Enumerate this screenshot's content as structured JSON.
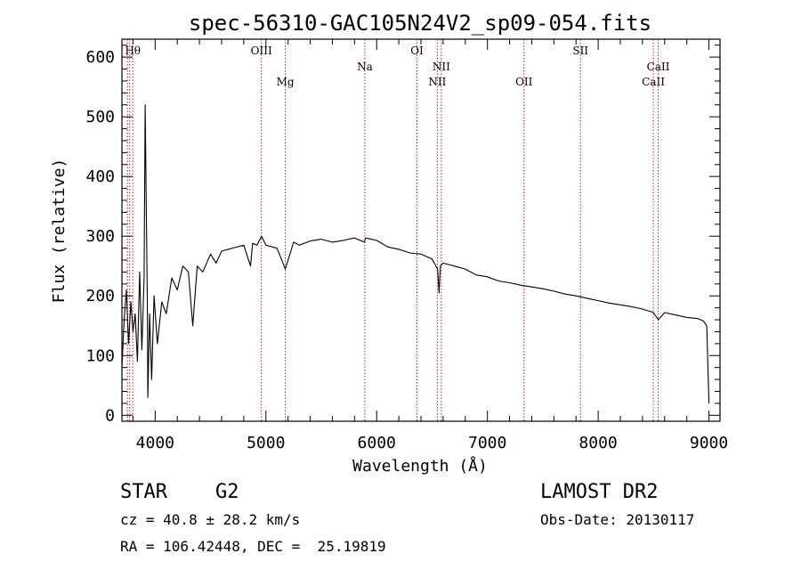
{
  "chart_data": {
    "type": "line",
    "title": "spec-56310-GAC105N24V2_sp09-054.fits",
    "xlabel": "Wavelength (Å)",
    "ylabel": "Flux (relative)",
    "xlim": [
      3700,
      9100
    ],
    "ylim": [
      -10,
      630
    ],
    "xticks": [
      4000,
      5000,
      6000,
      7000,
      8000,
      9000
    ],
    "yticks": [
      0,
      100,
      200,
      300,
      400,
      500,
      600
    ],
    "grid": false,
    "line_color": "#000000",
    "marker_color": "#b22222",
    "lines": [
      {
        "name": "Hθ",
        "wavelength": 3798,
        "row": "upper"
      },
      {
        "name": "OIII",
        "wavelength": 4959,
        "row": "upper"
      },
      {
        "name": "Mg",
        "wavelength": 5175,
        "row": "lower"
      },
      {
        "name": "Na",
        "wavelength": 5893,
        "row": "middle"
      },
      {
        "name": "OI",
        "wavelength": 6364,
        "row": "upper"
      },
      {
        "name": "NII",
        "wavelength": 6548,
        "row": "lower"
      },
      {
        "name": "NII",
        "wavelength": 6584,
        "row": "middle"
      },
      {
        "name": "OII",
        "wavelength": 7330,
        "row": "lower"
      },
      {
        "name": "SII",
        "wavelength": 7840,
        "row": "upper"
      },
      {
        "name": "CaII",
        "wavelength": 8498,
        "row": "lower"
      },
      {
        "name": "CaII",
        "wavelength": 8542,
        "row": "middle"
      },
      {
        "name": "",
        "wavelength": 3750,
        "row": "none"
      },
      {
        "name": "",
        "wavelength": 3770,
        "row": "none"
      }
    ],
    "spectrum": {
      "x": [
        3700,
        3720,
        3740,
        3760,
        3780,
        3800,
        3820,
        3840,
        3860,
        3880,
        3900,
        3910,
        3930,
        3934,
        3950,
        3968,
        3990,
        4020,
        4060,
        4100,
        4150,
        4200,
        4250,
        4300,
        4340,
        4380,
        4430,
        4500,
        4550,
        4600,
        4700,
        4800,
        4861,
        4880,
        4920,
        4960,
        5000,
        5100,
        5175,
        5250,
        5300,
        5400,
        5500,
        5600,
        5700,
        5800,
        5890,
        5900,
        6000,
        6100,
        6200,
        6300,
        6400,
        6500,
        6550,
        6563,
        6575,
        6600,
        6700,
        6800,
        6900,
        7000,
        7100,
        7200,
        7300,
        7400,
        7500,
        7600,
        7700,
        7800,
        7900,
        8000,
        8100,
        8200,
        8300,
        8400,
        8500,
        8542,
        8600,
        8700,
        8800,
        8900,
        8950,
        8980,
        9000
      ],
      "y": [
        80,
        160,
        210,
        120,
        190,
        140,
        170,
        90,
        240,
        110,
        230,
        520,
        180,
        30,
        170,
        60,
        200,
        120,
        190,
        170,
        230,
        210,
        250,
        240,
        150,
        250,
        240,
        270,
        255,
        275,
        280,
        285,
        250,
        288,
        285,
        300,
        285,
        280,
        245,
        290,
        285,
        292,
        295,
        290,
        293,
        297,
        290,
        297,
        293,
        282,
        278,
        272,
        270,
        262,
        245,
        205,
        250,
        255,
        250,
        245,
        235,
        232,
        225,
        222,
        218,
        215,
        212,
        208,
        203,
        200,
        196,
        192,
        188,
        185,
        182,
        178,
        172,
        160,
        172,
        168,
        164,
        162,
        158,
        150,
        20
      ]
    }
  },
  "info": {
    "class_label": "STAR",
    "subclass_label": "G2",
    "cz": "cz = 40.8 ± 28.2 km/s",
    "radec": "RA = 106.42448, DEC =  25.19819",
    "survey": "LAMOST DR2",
    "obs_date": "Obs-Date: 20130117"
  }
}
